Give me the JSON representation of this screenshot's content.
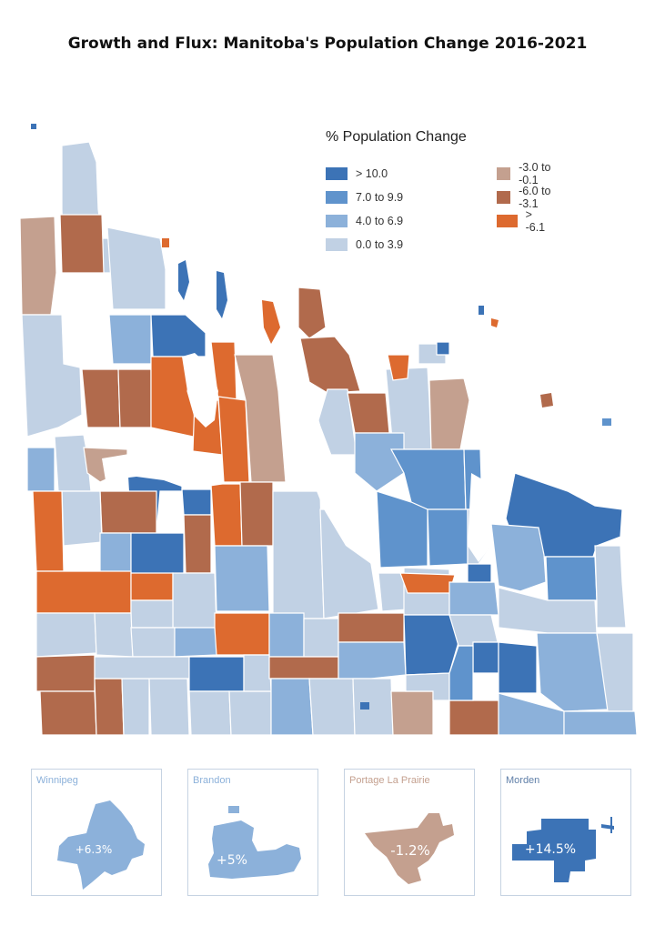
{
  "title": "Growth and Flux: Manitoba's Population Change 2016-2021",
  "legend": {
    "title": "% Population Change",
    "items": [
      {
        "label": "> 10.0",
        "color": "#3c73b6"
      },
      {
        "label": "7.0 to 9.9",
        "color": "#5f93cc"
      },
      {
        "label": "4.0 to 6.9",
        "color": "#8cb1da"
      },
      {
        "label": "0.0 to 3.9",
        "color": "#c1d1e4"
      },
      {
        "label": "-3.0 to -0.1",
        "color": "#c4a08f"
      },
      {
        "label": "-6.0 to -3.1",
        "color": "#b16a4c"
      },
      {
        "label": "> -6.1",
        "color": "#dd6a2f"
      }
    ]
  },
  "insets": [
    {
      "label": "Winnipeg",
      "value": "+6.3%",
      "color": "#8cb1da",
      "label_color": "#8cb1da"
    },
    {
      "label": "Brandon",
      "value": "+5%",
      "color": "#8cb1da",
      "label_color": "#8cb1da"
    },
    {
      "label": "Portage La Prairie",
      "value": "-1.2%",
      "color": "#c4a08f",
      "label_color": "#c4a08f"
    },
    {
      "label": "Morden",
      "value": "+14.5%",
      "color": "#3c73b6",
      "label_color": "#5f7fa8"
    }
  ]
}
